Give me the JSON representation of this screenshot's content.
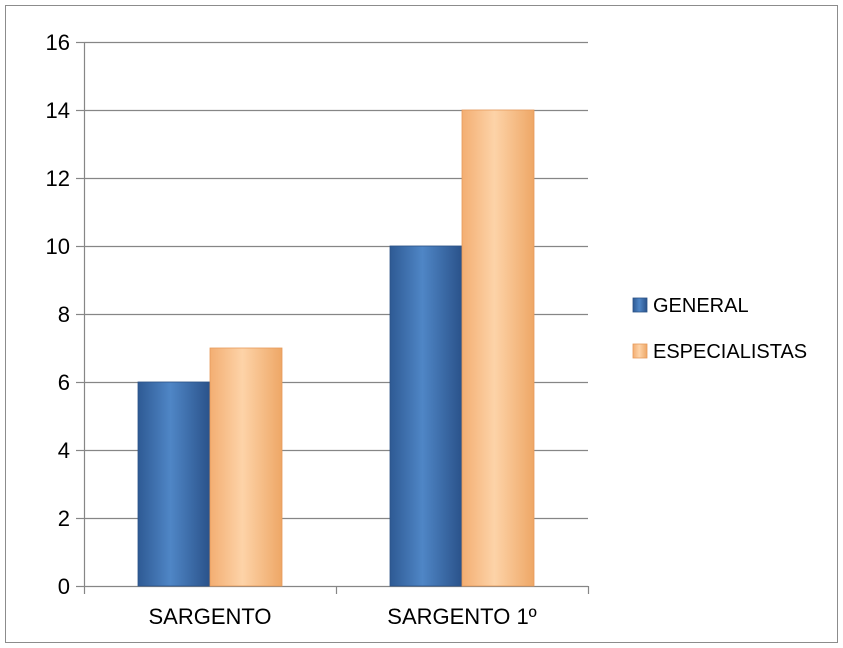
{
  "chart_data": {
    "type": "bar",
    "title": "",
    "xlabel": "",
    "ylabel": "",
    "categories": [
      "SARGENTO",
      "SARGENTO 1º"
    ],
    "series": [
      {
        "name": "GENERAL",
        "values": [
          6,
          10
        ]
      },
      {
        "name": "ESPECIALISTAS",
        "values": [
          7,
          14
        ]
      }
    ],
    "ylim": [
      0,
      16
    ],
    "yticks": [
      "0",
      "2",
      "4",
      "6",
      "8",
      "10",
      "12",
      "14",
      "16"
    ],
    "grid": true,
    "legend": "right",
    "colors": {
      "GENERAL": "#4a7ebb",
      "ESPECIALISTAS": "#fac090"
    }
  }
}
